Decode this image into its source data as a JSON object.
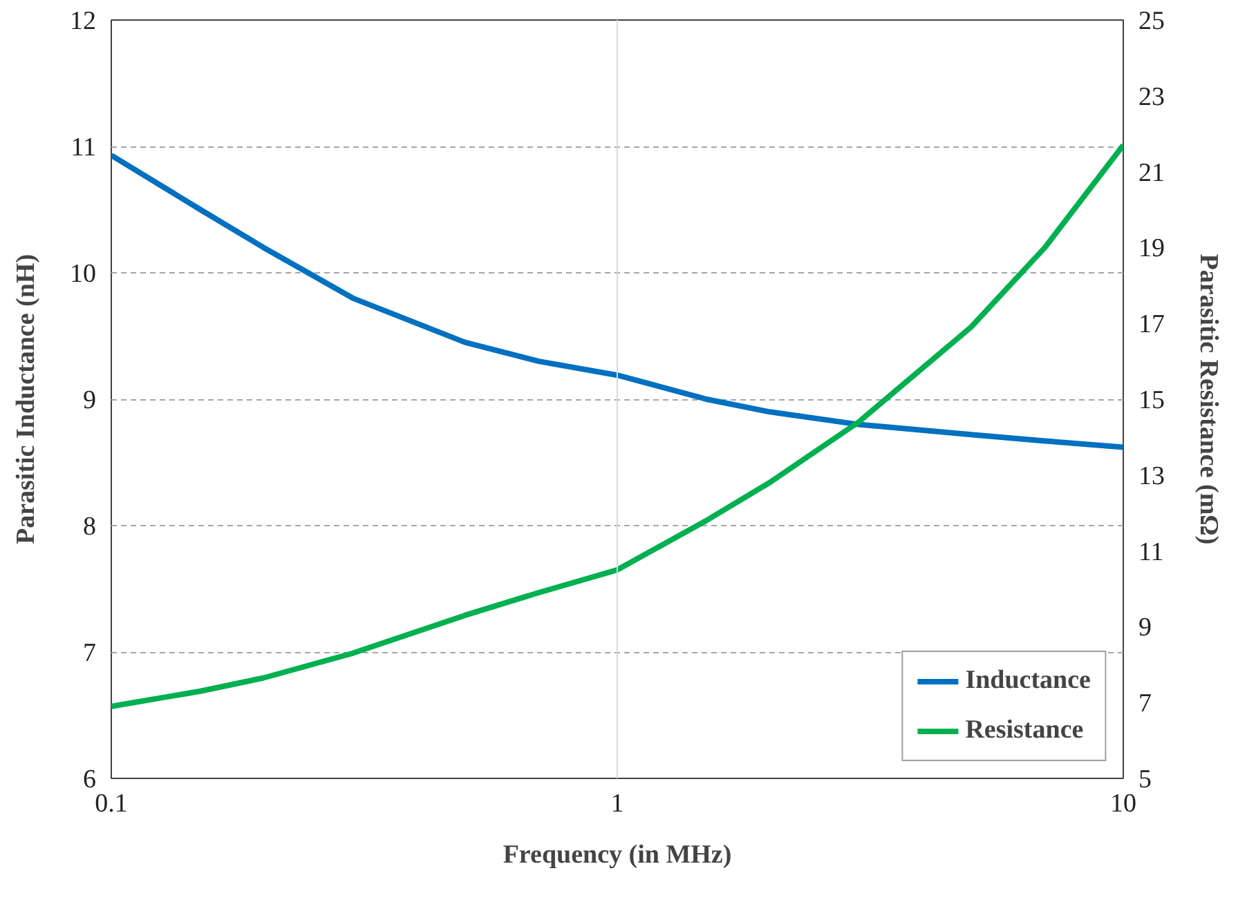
{
  "chart_data": {
    "type": "line",
    "xlabel": "Frequency (in MHz)",
    "ylabel": "Parasitic Inductance (nH)",
    "y2label": "Parasitic Resistance (mΩ)",
    "log": "x",
    "xlim": [
      0.1,
      10
    ],
    "xticks": [
      0.1,
      1,
      10
    ],
    "ylim": [
      6,
      12
    ],
    "yticks": [
      6,
      7,
      8,
      9,
      10,
      11,
      12
    ],
    "y2lim": [
      5,
      25
    ],
    "y2ticks": [
      5,
      7,
      9,
      11,
      13,
      15,
      17,
      19,
      21,
      23,
      25
    ],
    "grid": "y",
    "ref_lines": [
      {
        "axis": "x",
        "value": 1,
        "color": "#d9d9d9",
        "line_style": "solid"
      }
    ],
    "legend": "bottom right",
    "line_style": "solid",
    "marker": "none",
    "series": [
      {
        "name": "Inductance",
        "color": "#0070c0",
        "x": [
          0.1,
          0.15,
          0.2,
          0.3,
          0.5,
          0.7,
          1,
          1.5,
          2,
          3,
          5,
          7,
          10
        ],
        "values": [
          10.93,
          10.5,
          10.2,
          9.8,
          9.45,
          9.3,
          9.19,
          9.0,
          8.9,
          8.8,
          8.72,
          8.67,
          8.62
        ]
      },
      {
        "name": "Resistance",
        "color": "#00b050",
        "axis": "y2",
        "x": [
          0.1,
          0.15,
          0.2,
          0.3,
          0.5,
          0.7,
          1,
          1.5,
          2,
          3,
          5,
          7,
          10
        ],
        "values": [
          6.9,
          7.3,
          7.65,
          8.3,
          9.3,
          9.9,
          10.5,
          11.8,
          12.8,
          14.4,
          16.9,
          19.0,
          21.7
        ]
      }
    ]
  }
}
